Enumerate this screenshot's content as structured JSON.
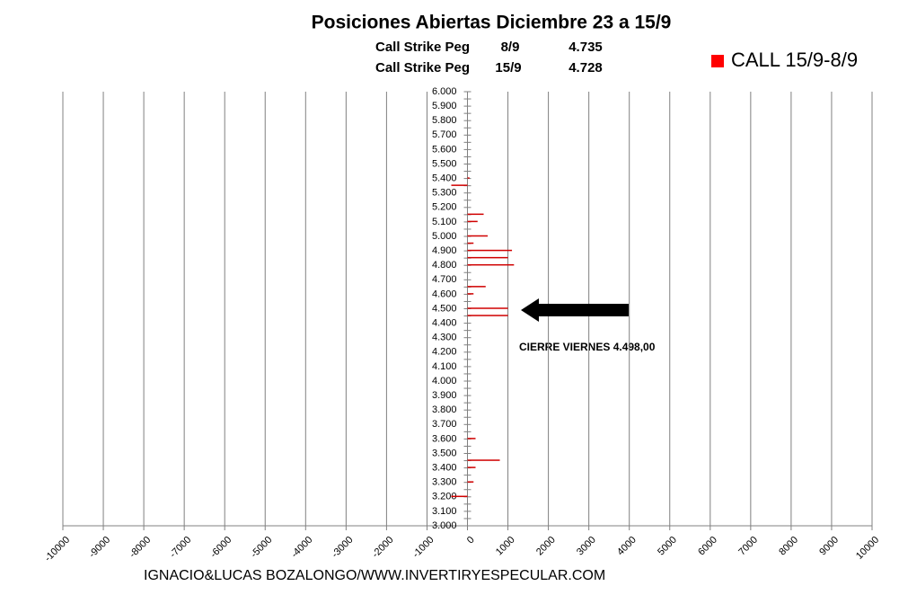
{
  "chart_data": {
    "type": "bar",
    "orientation": "horizontal",
    "title": "Posiciones Abiertas Diciembre 23 a 15/9",
    "subtitle_rows": [
      [
        "Call Strike Peg",
        "8/9",
        "4.735"
      ],
      [
        "Call Strike Peg",
        "15/9",
        "4.728"
      ]
    ],
    "annotation": "CIERRE VIERNES 4.498,00",
    "footer": "IGNACIO&LUCAS BOZALONGO/WWW.INVERTIRYESPECULAR.COM",
    "categories": [
      "6.000",
      null,
      "5.900",
      null,
      "5.800",
      null,
      "5.700",
      null,
      "5.600",
      null,
      "5.500",
      null,
      "5.400",
      null,
      "5.300",
      null,
      "5.200",
      null,
      "5.100",
      null,
      "5.000",
      null,
      "4.900",
      null,
      "4.800",
      null,
      "4.700",
      null,
      "4.600",
      null,
      "4.500",
      null,
      "4.400",
      null,
      "4.300",
      null,
      "4.200",
      null,
      "4.100",
      null,
      "4.000",
      null,
      "3.900",
      null,
      "3.800",
      null,
      "3.700",
      null,
      "3.600",
      null,
      "3.500",
      null,
      "3.400",
      null,
      "3.300",
      null,
      "3.200",
      null,
      "3.100",
      null,
      "3.000"
    ],
    "series": [
      {
        "name": "CALL 15/9-8/9",
        "color": "#d00000",
        "values": [
          0,
          0,
          0,
          0,
          0,
          0,
          0,
          0,
          0,
          0,
          0,
          0,
          50,
          -400,
          0,
          0,
          0,
          400,
          250,
          0,
          500,
          150,
          1100,
          1000,
          1150,
          0,
          0,
          450,
          150,
          0,
          1000,
          1000,
          0,
          0,
          0,
          0,
          0,
          0,
          0,
          0,
          0,
          0,
          0,
          0,
          0,
          0,
          0,
          0,
          200,
          0,
          0,
          800,
          200,
          0,
          150,
          0,
          -400,
          0,
          0,
          0,
          0
        ]
      }
    ],
    "xlim": [
      -10000,
      10000
    ],
    "xticks": [
      -10000,
      -9000,
      -8000,
      -7000,
      -6000,
      -5000,
      -4000,
      -3000,
      -2000,
      -1000,
      0,
      1000,
      2000,
      3000,
      4000,
      5000,
      6000,
      7000,
      8000,
      9000,
      10000
    ],
    "grid": true,
    "legend": "top-right"
  }
}
